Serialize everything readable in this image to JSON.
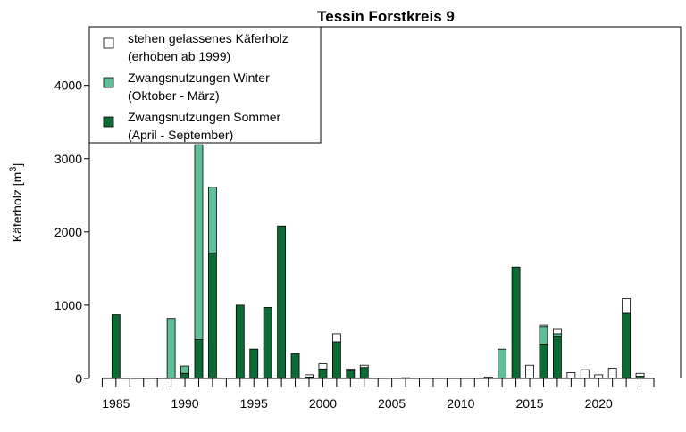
{
  "chart_data": {
    "type": "bar",
    "stacked": true,
    "title": "Tessin Forstkreis 9",
    "ylabel": "Käferholz [m",
    "ylabel_sup": "3",
    "ylabel_close": "]",
    "ylim": [
      0,
      4800
    ],
    "yticks": [
      0,
      1000,
      2000,
      3000,
      4000
    ],
    "xlim": [
      1984,
      2024
    ],
    "xticks_labeled": [
      1985,
      1990,
      1995,
      2000,
      2005,
      2010,
      2015,
      2020
    ],
    "categories": [
      1984,
      1985,
      1986,
      1987,
      1988,
      1989,
      1990,
      1991,
      1992,
      1993,
      1994,
      1995,
      1996,
      1997,
      1998,
      1999,
      2000,
      2001,
      2002,
      2003,
      2004,
      2005,
      2006,
      2007,
      2008,
      2009,
      2010,
      2011,
      2012,
      2013,
      2014,
      2015,
      2016,
      2017,
      2018,
      2019,
      2020,
      2021,
      2022,
      2023
    ],
    "series": [
      {
        "name": "Zwangsnutzungen Sommer (April - September)",
        "color": "#0b6b33",
        "values": [
          0,
          870,
          0,
          0,
          0,
          0,
          70,
          530,
          1710,
          0,
          1000,
          400,
          970,
          2080,
          340,
          20,
          130,
          500,
          110,
          150,
          0,
          0,
          0,
          0,
          0,
          0,
          0,
          0,
          0,
          0,
          1520,
          0,
          470,
          570,
          0,
          0,
          0,
          0,
          890,
          30
        ]
      },
      {
        "name": "Zwangsnutzungen Winter (Oktober - März)",
        "color": "#5fbf98",
        "values": [
          0,
          0,
          0,
          0,
          0,
          820,
          100,
          2660,
          900,
          0,
          0,
          0,
          0,
          0,
          0,
          0,
          0,
          0,
          0,
          0,
          0,
          0,
          0,
          0,
          0,
          0,
          0,
          0,
          0,
          400,
          0,
          0,
          240,
          40,
          0,
          0,
          0,
          0,
          0,
          0
        ]
      },
      {
        "name": "stehen gelassenes Käferholz (erhoben ab 1999)",
        "color": "#ffffff",
        "values": [
          0,
          0,
          0,
          0,
          0,
          0,
          0,
          0,
          0,
          0,
          0,
          0,
          0,
          0,
          0,
          30,
          70,
          110,
          20,
          30,
          0,
          0,
          10,
          0,
          0,
          0,
          0,
          0,
          20,
          0,
          0,
          180,
          20,
          60,
          80,
          120,
          50,
          140,
          200,
          40
        ]
      }
    ],
    "legend": {
      "placement": "top-left",
      "entries": [
        {
          "line1": "stehen gelassenes Käferholz",
          "line2": "(erhoben ab 1999)",
          "color": "#ffffff"
        },
        {
          "line1": "Zwangsnutzungen Winter",
          "line2": "(Oktober - März)",
          "color": "#5fbf98"
        },
        {
          "line1": "Zwangsnutzungen Sommer",
          "line2": "(April - September)",
          "color": "#0b6b33"
        }
      ]
    }
  }
}
